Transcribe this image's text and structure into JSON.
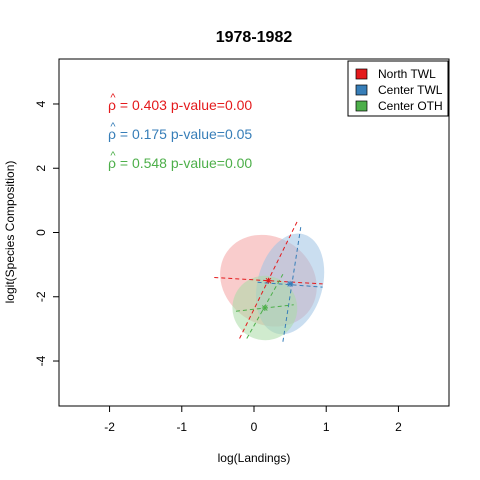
{
  "chart_data": {
    "type": "scatter",
    "title": "1978-1982",
    "xlabel": "log(Landings)",
    "ylabel": "logit(Species Composition)",
    "xlim": [
      -2.7,
      2.7
    ],
    "ylim": [
      -5.4,
      5.4
    ],
    "x_ticks": [
      -2,
      -1,
      0,
      1,
      2
    ],
    "y_ticks": [
      -4,
      -2,
      0,
      2,
      4
    ],
    "grid": false,
    "legend_position": "top-right",
    "legend": [
      {
        "label": "North   TWL",
        "color": "#e41a1c"
      },
      {
        "label": "Center TWL",
        "color": "#377eb8"
      },
      {
        "label": "Center OTH",
        "color": "#4daf4a"
      }
    ],
    "annotations": [
      {
        "rho": "0.403",
        "p_value": "p-value=0.00",
        "color": "#e41a1c"
      },
      {
        "rho": "0.175",
        "p_value": "p-value=0.05",
        "color": "#377eb8"
      },
      {
        "rho": "0.548",
        "p_value": "p-value=0.00",
        "color": "#4daf4a"
      }
    ],
    "series": [
      {
        "name": "North   TWL",
        "color": "#e41a1c",
        "fill": "#f4a3a3",
        "center": [
          0.2,
          -1.5
        ],
        "ellipse": {
          "rx": 0.7,
          "ry": 1.35,
          "tilt_deg": 35
        },
        "axis_lines": [
          [
            [
              -0.55,
              -1.4
            ],
            [
              0.95,
              -1.6
            ]
          ],
          [
            [
              -0.2,
              -3.3
            ],
            [
              0.6,
              0.35
            ]
          ]
        ]
      },
      {
        "name": "Center TWL",
        "color": "#377eb8",
        "fill": "#9ec2e4",
        "center": [
          0.5,
          -1.6
        ],
        "ellipse": {
          "rx": 0.45,
          "ry": 1.6,
          "tilt_deg": 15
        },
        "axis_lines": [
          [
            [
              0.05,
              -1.55
            ],
            [
              0.95,
              -1.7
            ]
          ],
          [
            [
              0.4,
              -3.4
            ],
            [
              0.65,
              0.2
            ]
          ]
        ]
      },
      {
        "name": "Center OTH",
        "color": "#4daf4a",
        "fill": "#a9dba5",
        "center": [
          0.15,
          -2.35
        ],
        "ellipse": {
          "rx": 0.45,
          "ry": 1.0,
          "tilt_deg": 28
        },
        "axis_lines": [
          [
            [
              -0.25,
              -2.45
            ],
            [
              0.55,
              -2.25
            ]
          ],
          [
            [
              -0.1,
              -3.3
            ],
            [
              0.4,
              -1.3
            ]
          ]
        ]
      }
    ]
  }
}
